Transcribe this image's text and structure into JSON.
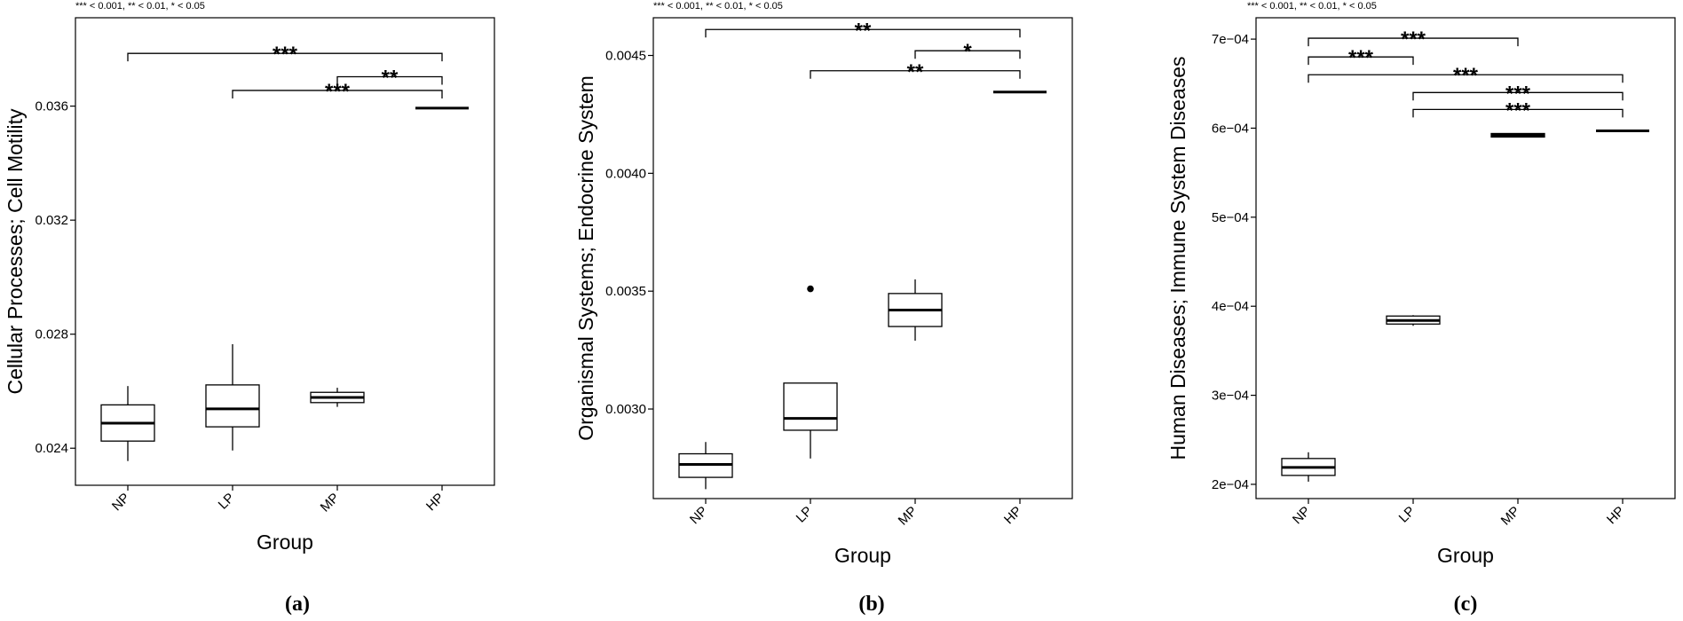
{
  "significance_note": "*** < 0.001, ** < 0.01, * < 0.05",
  "chart_data": [
    {
      "type": "box",
      "panel_label": "(a)",
      "xlabel": "Group",
      "ylabel": "Cellular Processes; Cell Motility",
      "categories": [
        "NP",
        "LP",
        "MP",
        "HP"
      ],
      "ylim": [
        0.0227,
        0.0391
      ],
      "yticks": [
        0.024,
        0.028,
        0.032,
        0.036
      ],
      "ytick_labels": [
        "0.024",
        "0.028",
        "0.032",
        "0.036"
      ],
      "boxes": [
        {
          "group": "NP",
          "min": 0.02355,
          "q1": 0.02425,
          "median": 0.02488,
          "q3": 0.02552,
          "max": 0.02618
        },
        {
          "group": "LP",
          "min": 0.02392,
          "q1": 0.02475,
          "median": 0.02538,
          "q3": 0.02622,
          "max": 0.02765
        },
        {
          "group": "MP",
          "min": 0.02545,
          "q1": 0.0256,
          "median": 0.02578,
          "q3": 0.02596,
          "max": 0.02612
        },
        {
          "group": "HP",
          "min": 0.03593,
          "q1": 0.03593,
          "median": 0.03593,
          "q3": 0.03593,
          "max": 0.03593
        }
      ],
      "outliers": [],
      "comparisons": [
        {
          "from": "NP",
          "to": "HP",
          "y": 0.03785,
          "label": "***"
        },
        {
          "from": "MP",
          "to": "HP",
          "y": 0.03703,
          "label": "**"
        },
        {
          "from": "LP",
          "to": "HP",
          "y": 0.03655,
          "label": "***"
        }
      ]
    },
    {
      "type": "box",
      "panel_label": "(b)",
      "xlabel": "Group",
      "ylabel": "Organismal Systems; Endocrine System",
      "categories": [
        "NP",
        "LP",
        "MP",
        "HP"
      ],
      "ylim": [
        0.00262,
        0.00466
      ],
      "yticks": [
        0.003,
        0.0035,
        0.004,
        0.0045
      ],
      "ytick_labels": [
        "0.0030",
        "0.0035",
        "0.0040",
        "0.0045"
      ],
      "boxes": [
        {
          "group": "NP",
          "min": 0.00266,
          "q1": 0.00271,
          "median": 0.002765,
          "q3": 0.00281,
          "max": 0.00286
        },
        {
          "group": "LP",
          "min": 0.00279,
          "q1": 0.00291,
          "median": 0.00296,
          "q3": 0.00311,
          "max": 0.00311
        },
        {
          "group": "MP",
          "min": 0.00329,
          "q1": 0.00335,
          "median": 0.00342,
          "q3": 0.00349,
          "max": 0.00355
        },
        {
          "group": "HP",
          "min": 0.004345,
          "q1": 0.004345,
          "median": 0.004345,
          "q3": 0.004345,
          "max": 0.004345
        }
      ],
      "outliers": [
        {
          "group": "LP",
          "value": 0.00351
        }
      ],
      "comparisons": [
        {
          "from": "NP",
          "to": "HP",
          "y": 0.00461,
          "label": "**"
        },
        {
          "from": "MP",
          "to": "HP",
          "y": 0.00452,
          "label": "*"
        },
        {
          "from": "LP",
          "to": "HP",
          "y": 0.004435,
          "label": "**"
        }
      ]
    },
    {
      "type": "box",
      "panel_label": "(c)",
      "xlabel": "Group",
      "ylabel": "Human Diseases; Immune System Diseases",
      "categories": [
        "NP",
        "LP",
        "MP",
        "HP"
      ],
      "ylim": [
        0.000184,
        0.000724
      ],
      "yticks": [
        0.0002,
        0.0003,
        0.0004,
        0.0005,
        0.0006,
        0.0007
      ],
      "ytick_labels": [
        "2e−04",
        "3e−04",
        "4e−04",
        "5e−04",
        "6e−04",
        "7e−04"
      ],
      "boxes": [
        {
          "group": "NP",
          "min": 0.000203,
          "q1": 0.00021,
          "median": 0.000219,
          "q3": 0.000229,
          "max": 0.000236
        },
        {
          "group": "LP",
          "min": 0.000378,
          "q1": 0.00038,
          "median": 0.000384,
          "q3": 0.000389,
          "max": 0.00039
        },
        {
          "group": "MP",
          "min": 0.00059,
          "q1": 0.00059,
          "median": 0.000592,
          "q3": 0.000594,
          "max": 0.000594
        },
        {
          "group": "HP",
          "min": 0.000597,
          "q1": 0.000597,
          "median": 0.000597,
          "q3": 0.000597,
          "max": 0.000597
        }
      ],
      "outliers": [],
      "comparisons": [
        {
          "from": "NP",
          "to": "MP",
          "y": 0.000701,
          "label": "***"
        },
        {
          "from": "NP",
          "to": "LP",
          "y": 0.00068,
          "label": "***"
        },
        {
          "from": "NP",
          "to": "HP",
          "y": 0.00066,
          "label": "***"
        },
        {
          "from": "LP",
          "to": "HP",
          "y": 0.00064,
          "label": "***"
        },
        {
          "from": "LP",
          "to": "HP",
          "y": 0.000621,
          "label": "***"
        }
      ]
    }
  ]
}
